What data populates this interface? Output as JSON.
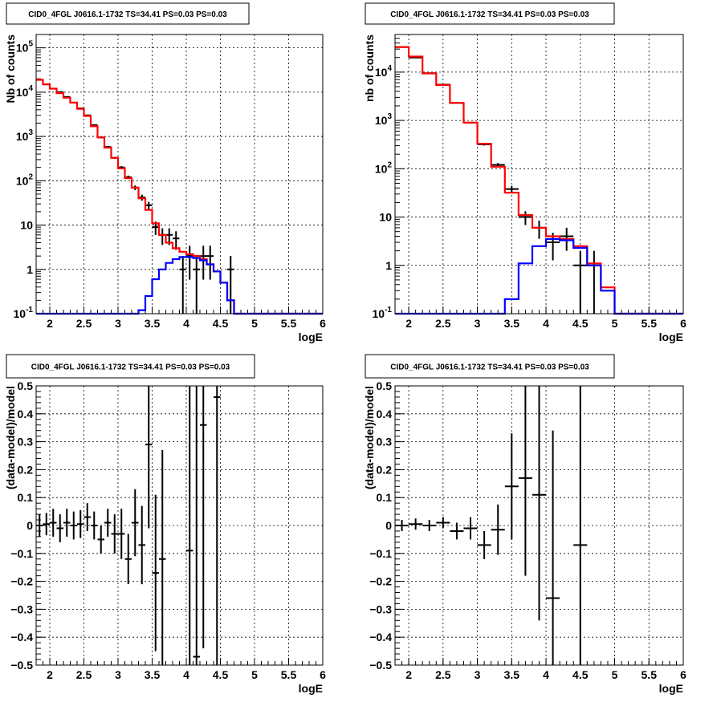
{
  "chart_data": [
    {
      "id": "counts-logE-bin",
      "type": "line",
      "title": "CID0_4FGL J0616.1-1732 TS=34.41 PS=0.03 PS=0.03",
      "xlabel": "logE",
      "ylabel": "Nb of counts",
      "xlim": [
        1.8,
        6.0
      ],
      "ylim": [
        0.1,
        200000
      ],
      "yscale": "log",
      "grid": true,
      "x_ticks": [
        "2",
        "2.5",
        "3",
        "3.5",
        "4",
        "4.5",
        "5",
        "5.5",
        "6"
      ],
      "y_ticks": [
        "10^-1",
        "1",
        "10",
        "10^2",
        "10^3",
        "10^4",
        "10^5"
      ],
      "bin_width": 0.1,
      "series": [
        {
          "name": "",
          "style": "data-points",
          "color": "#000000",
          "points": [
            {
              "x": 1.85,
              "y": 19000
            },
            {
              "x": 1.95,
              "y": 15000
            },
            {
              "x": 2.05,
              "y": 12000
            },
            {
              "x": 2.15,
              "y": 10000
            },
            {
              "x": 2.25,
              "y": 7800
            },
            {
              "x": 2.35,
              "y": 5800
            },
            {
              "x": 2.45,
              "y": 4300
            },
            {
              "x": 2.55,
              "y": 3000
            },
            {
              "x": 2.65,
              "y": 1800
            },
            {
              "x": 2.75,
              "y": 950
            },
            {
              "x": 2.85,
              "y": 580
            },
            {
              "x": 2.95,
              "y": 330
            },
            {
              "x": 3.05,
              "y": 200
            },
            {
              "x": 3.15,
              "y": 120
            },
            {
              "x": 3.25,
              "y": 70
            },
            {
              "x": 3.35,
              "y": 42
            },
            {
              "x": 3.45,
              "y": 28
            },
            {
              "x": 3.55,
              "y": 9
            },
            {
              "x": 3.65,
              "y": 6
            },
            {
              "x": 3.75,
              "y": 6
            },
            {
              "x": 3.85,
              "y": 5
            },
            {
              "x": 3.95,
              "y": 1
            },
            {
              "x": 4.05,
              "y": 2
            },
            {
              "x": 4.15,
              "y": 1
            },
            {
              "x": 4.25,
              "y": 2
            },
            {
              "x": 4.35,
              "y": 2
            },
            {
              "x": 4.65,
              "y": 1
            }
          ]
        },
        {
          "name": "",
          "style": "histogram",
          "color": "#ff0000",
          "values": [
            19000,
            15000,
            12000,
            9500,
            7500,
            5800,
            4200,
            2900,
            1700,
            950,
            560,
            330,
            190,
            115,
            70,
            40,
            22,
            11,
            6,
            4,
            3,
            2.5,
            2.2,
            2,
            1.7,
            1.3,
            0.9,
            0.5,
            0.2,
            0.1,
            0.1,
            0.1,
            0.1,
            0.1,
            0.1,
            0.1,
            0.1,
            0.1,
            0.1,
            0.1,
            0.1,
            0.1
          ]
        },
        {
          "name": "",
          "style": "histogram",
          "color": "#0000ff",
          "values": [
            0.1,
            0.1,
            0.1,
            0.1,
            0.1,
            0.1,
            0.1,
            0.1,
            0.1,
            0.1,
            0.1,
            0.1,
            0.1,
            0.1,
            0.1,
            0.12,
            0.25,
            0.6,
            1.0,
            1.4,
            1.7,
            1.9,
            1.9,
            1.8,
            1.6,
            1.3,
            0.9,
            0.5,
            0.2,
            0.1,
            0.1,
            0.1,
            0.1,
            0.1,
            0.1,
            0.1,
            0.1,
            0.1,
            0.1,
            0.1,
            0.1,
            0.1
          ]
        }
      ]
    },
    {
      "id": "counts-logE-coarse",
      "type": "line",
      "title": "CID0_4FGL J0616.1-1732 TS=34.41 PS=0.03 PS=0.03",
      "xlabel": "logE",
      "ylabel": "nb of counts",
      "xlim": [
        1.8,
        6.0
      ],
      "ylim": [
        0.1,
        60000
      ],
      "yscale": "log",
      "grid": true,
      "x_ticks": [
        "2",
        "2.5",
        "3",
        "3.5",
        "4",
        "4.5",
        "5",
        "5.5",
        "6"
      ],
      "y_ticks": [
        "10^-1",
        "1",
        "10",
        "10^2",
        "10^3",
        "10^4"
      ],
      "bin_width": 0.2,
      "series": [
        {
          "name": "",
          "style": "data-points",
          "color": "#000000",
          "points": [
            {
              "x": 1.9,
              "y": 33000
            },
            {
              "x": 2.1,
              "y": 20000
            },
            {
              "x": 2.3,
              "y": 9500
            },
            {
              "x": 2.5,
              "y": 5500
            },
            {
              "x": 2.7,
              "y": 2300
            },
            {
              "x": 2.9,
              "y": 900
            },
            {
              "x": 3.1,
              "y": 320
            },
            {
              "x": 3.3,
              "y": 120
            },
            {
              "x": 3.5,
              "y": 38
            },
            {
              "x": 3.7,
              "y": 10
            },
            {
              "x": 3.9,
              "y": 6
            },
            {
              "x": 4.1,
              "y": 3
            },
            {
              "x": 4.3,
              "y": 4
            },
            {
              "x": 4.5,
              "y": 1
            },
            {
              "x": 4.7,
              "y": 1
            }
          ]
        },
        {
          "name": "",
          "style": "histogram",
          "color": "#ff0000",
          "values": [
            33000,
            21000,
            9400,
            5400,
            2300,
            900,
            330,
            110,
            32,
            11,
            6,
            4,
            3.5,
            2.5,
            1.1,
            0.35,
            0.1,
            0.1,
            0.1,
            0.1,
            0.1
          ]
        },
        {
          "name": "",
          "style": "histogram",
          "color": "#0000ff",
          "values": [
            0.1,
            0.1,
            0.1,
            0.1,
            0.1,
            0.1,
            0.1,
            0.1,
            0.2,
            1.1,
            2.5,
            3.5,
            3.3,
            2.3,
            1.0,
            0.3,
            0.1,
            0.1,
            0.1,
            0.1,
            0.1
          ]
        }
      ]
    },
    {
      "id": "residual-logE-bin",
      "type": "scatter",
      "title": "CID0_4FGL J0616.1-1732 TS=34.41 PS=0.03 PS=0.03",
      "xlabel": "logE",
      "ylabel": "(data-model)/model",
      "xlim": [
        1.8,
        6.0
      ],
      "ylim": [
        -0.5,
        0.5
      ],
      "grid": true,
      "x_ticks": [
        "2",
        "2.5",
        "3",
        "3.5",
        "4",
        "4.5",
        "5",
        "5.5",
        "6"
      ],
      "y_ticks": [
        "-0.5",
        "-0.4",
        "-0.3",
        "-0.2",
        "-0.1",
        "0",
        "0.1",
        "0.2",
        "0.3",
        "0.4",
        "0.5"
      ],
      "bin_width": 0.1,
      "series": [
        {
          "name": "",
          "style": "data-points",
          "color": "#000000",
          "points": [
            {
              "x": 1.85,
              "y": 0.0,
              "err": 0.04
            },
            {
              "x": 1.95,
              "y": 0.005,
              "err": 0.04
            },
            {
              "x": 2.05,
              "y": 0.01,
              "err": 0.05
            },
            {
              "x": 2.15,
              "y": -0.01,
              "err": 0.05
            },
            {
              "x": 2.25,
              "y": 0.01,
              "err": 0.05
            },
            {
              "x": 2.35,
              "y": 0.0,
              "err": 0.05
            },
            {
              "x": 2.45,
              "y": 0.005,
              "err": 0.05
            },
            {
              "x": 2.55,
              "y": 0.03,
              "err": 0.05
            },
            {
              "x": 2.65,
              "y": 0.0,
              "err": 0.05
            },
            {
              "x": 2.75,
              "y": -0.05,
              "err": 0.05
            },
            {
              "x": 2.85,
              "y": 0.01,
              "err": 0.05
            },
            {
              "x": 2.95,
              "y": -0.03,
              "err": 0.07
            },
            {
              "x": 3.05,
              "y": -0.03,
              "err": 0.09
            },
            {
              "x": 3.15,
              "y": -0.12,
              "err": 0.09
            },
            {
              "x": 3.25,
              "y": 0.01,
              "err": 0.12
            },
            {
              "x": 3.35,
              "y": -0.07,
              "err": 0.14
            },
            {
              "x": 3.45,
              "y": 0.29,
              "err": 0.3
            },
            {
              "x": 3.55,
              "y": -0.17,
              "err": 0.28
            },
            {
              "x": 3.65,
              "y": -0.12,
              "err": 0.39
            },
            {
              "x": 4.05,
              "y": -0.09,
              "err": 1.0
            },
            {
              "x": 4.15,
              "y": -0.47,
              "err": 1.0
            },
            {
              "x": 4.25,
              "y": 0.36,
              "err": 0.8
            },
            {
              "x": 4.45,
              "y": 0.46,
              "err": 1.0
            }
          ]
        }
      ]
    },
    {
      "id": "residual-logE-coarse",
      "type": "scatter",
      "title": "CID0_4FGL J0616.1-1732 TS=34.41 PS=0.03 PS=0.03",
      "xlabel": "logE",
      "ylabel": "(data-model)/model",
      "xlim": [
        1.8,
        6.0
      ],
      "ylim": [
        -0.5,
        0.5
      ],
      "grid": true,
      "x_ticks": [
        "2",
        "2.5",
        "3",
        "3.5",
        "4",
        "4.5",
        "5",
        "5.5",
        "6"
      ],
      "y_ticks": [
        "-0.5",
        "-0.4",
        "-0.3",
        "-0.2",
        "-0.1",
        "0",
        "0.1",
        "0.2",
        "0.3",
        "0.4",
        "0.5"
      ],
      "bin_width": 0.2,
      "series": [
        {
          "name": "",
          "style": "data-points",
          "color": "#000000",
          "points": [
            {
              "x": 1.9,
              "y": 0.0,
              "err": 0.02
            },
            {
              "x": 2.1,
              "y": 0.005,
              "err": 0.02
            },
            {
              "x": 2.3,
              "y": 0.0,
              "err": 0.02
            },
            {
              "x": 2.5,
              "y": 0.01,
              "err": 0.02
            },
            {
              "x": 2.7,
              "y": -0.02,
              "err": 0.03
            },
            {
              "x": 2.9,
              "y": -0.01,
              "err": 0.04
            },
            {
              "x": 3.1,
              "y": -0.07,
              "err": 0.05
            },
            {
              "x": 3.3,
              "y": -0.015,
              "err": 0.09
            },
            {
              "x": 3.5,
              "y": 0.14,
              "err": 0.19
            },
            {
              "x": 3.7,
              "y": 0.17,
              "err": 0.35
            },
            {
              "x": 3.9,
              "y": 0.11,
              "err": 0.45
            },
            {
              "x": 4.1,
              "y": -0.26,
              "err": 0.6
            },
            {
              "x": 4.5,
              "y": -0.07,
              "err": 1.0
            }
          ]
        }
      ]
    }
  ]
}
